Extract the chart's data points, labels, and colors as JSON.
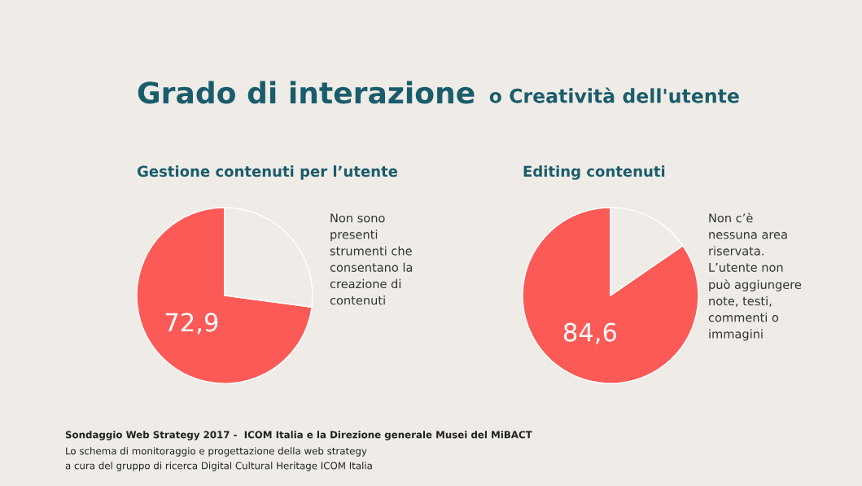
{
  "chart_data": [
    {
      "type": "pie",
      "title": "Gestione contenuti per l’utente",
      "categories": [
        null,
        null
      ],
      "values": [
        72.9,
        27.1
      ],
      "colors": [
        "#fb5a57",
        "#efece7"
      ],
      "value_labels": [
        "72,9",
        null
      ],
      "annotations": [
        "Non sono\npresenti\nstrumenti che\nconsentano la\ncreazione di\ncontenuti",
        "Grado di interazione",
        "o Creatività dell'utente",
        "Sondaggio Web Strategy 2017 -  ICOM Italia e la Direzione generale Musei del MiBACT",
        "Lo schema di monitoraggio e progettazione della web strategy",
        "a cura del gruppo di ricerca Digital Cultural Heritage ICOM Italia"
      ]
    },
    {
      "type": "pie",
      "title": "Editing contenuti",
      "categories": [
        null,
        null
      ],
      "values": [
        84.6,
        15.4
      ],
      "colors": [
        "#fb5a57",
        "#efece7"
      ],
      "value_labels": [
        "84,6",
        null
      ],
      "annotations": [
        "Non c’è\nnessuna area\nriservata.\nL’utente non\npuò aggiungere\nnote, testi,\ncommenti o\nimmagini"
      ]
    }
  ]
}
